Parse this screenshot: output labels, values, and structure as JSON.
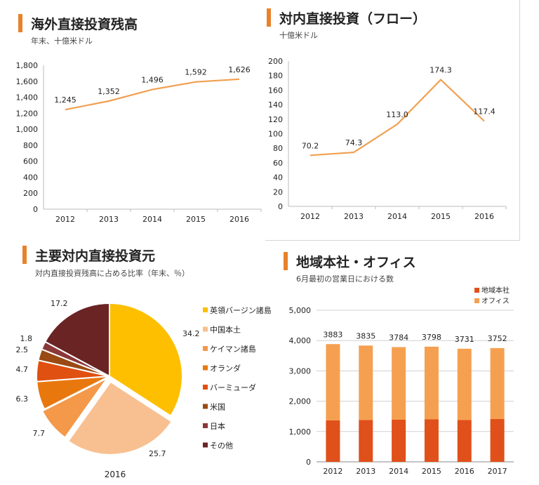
{
  "colors": {
    "accent": "#e8822a",
    "line": "#f0a050",
    "hq": "#e0501a",
    "office": "#f5a050"
  },
  "charts": [
    {
      "id": "stock",
      "title": "海外直接投資残高",
      "subtitle": "年末、十億米ドル",
      "chart_data": {
        "type": "line",
        "title": "海外直接投資残高",
        "subtitle": "年末、十億米ドル",
        "categories": [
          "2012",
          "2013",
          "2014",
          "2015",
          "2016"
        ],
        "values": [
          1245,
          1352,
          1496,
          1592,
          1626
        ],
        "value_labels": [
          "1,245",
          "1,352",
          "1,496",
          "1,592",
          "1,626"
        ],
        "ylim": [
          0,
          1800
        ],
        "y_ticks": [
          "0",
          "200",
          "400",
          "600",
          "800",
          "1,000",
          "1,200",
          "1,400",
          "1,600",
          "1,800"
        ],
        "grid": false
      }
    },
    {
      "id": "flow",
      "title": "対内直接投資（フロー）",
      "subtitle": "十億米ドル",
      "chart_data": {
        "type": "line",
        "title": "対内直接投資（フロー）",
        "subtitle": "十億米ドル",
        "categories": [
          "2012",
          "2013",
          "2014",
          "2015",
          "2016"
        ],
        "values": [
          70.2,
          74.3,
          113.0,
          174.3,
          117.4
        ],
        "value_labels": [
          "70.2",
          "74.3",
          "113.0",
          "174.3",
          "117.4"
        ],
        "ylim": [
          0,
          200
        ],
        "y_ticks": [
          "0",
          "20",
          "40",
          "60",
          "80",
          "100",
          "120",
          "140",
          "160",
          "180",
          "200"
        ],
        "grid": false
      }
    },
    {
      "id": "sources",
      "title": "主要対内直接投資元",
      "subtitle": "対内直接投資残高に占める比率（年末、％）",
      "chart_data": {
        "type": "pie",
        "title": "主要対内直接投資元",
        "subtitle": "対内直接投資残高に占める比率（年末、％）",
        "year_label": "2016",
        "slices": [
          {
            "name": "英領バージン諸島",
            "value": 34.2,
            "label": "34.2",
            "color": "#fdbf00"
          },
          {
            "name": "中国本土",
            "value": 25.7,
            "label": "25.7",
            "color": "#f8c090"
          },
          {
            "name": "ケイマン諸島",
            "value": 7.7,
            "label": "7.7",
            "color": "#f4984a"
          },
          {
            "name": "オランダ",
            "value": 6.3,
            "label": "6.3",
            "color": "#e8780e"
          },
          {
            "name": "バーミューダ",
            "value": 4.7,
            "label": "4.7",
            "color": "#e05010"
          },
          {
            "name": "米国",
            "value": 2.5,
            "label": "2.5",
            "color": "#9a4a12"
          },
          {
            "name": "日本",
            "value": 1.8,
            "label": "1.8",
            "color": "#8a3838"
          },
          {
            "name": "その他",
            "value": 17.2,
            "label": "17.2",
            "color": "#6a2424"
          }
        ],
        "legend_position": "right"
      }
    },
    {
      "id": "offices",
      "title": "地域本社・オフィス",
      "subtitle": "6月最初の営業日における数",
      "chart_data": {
        "type": "bar",
        "stacked": true,
        "title": "地域本社・オフィス",
        "subtitle": "6月最初の営業日における数",
        "categories": [
          "2012",
          "2013",
          "2014",
          "2015",
          "2016",
          "2017"
        ],
        "series": [
          {
            "name": "地域本社",
            "values": [
              1367,
              1379,
              1389,
              1401,
              1379,
              1413
            ],
            "color": "#e0501a"
          },
          {
            "name": "オフィス",
            "values": [
              2516,
              2456,
              2395,
              2397,
              2352,
              2339
            ],
            "color": "#f5a050"
          }
        ],
        "totals": [
          "3883",
          "3835",
          "3784",
          "3798",
          "3731",
          "3752"
        ],
        "ylim": [
          0,
          5000
        ],
        "y_ticks": [
          "0",
          "1,000",
          "2,000",
          "3,000",
          "4,000",
          "5,000"
        ],
        "grid": true,
        "legend_position": "top-right"
      }
    }
  ]
}
